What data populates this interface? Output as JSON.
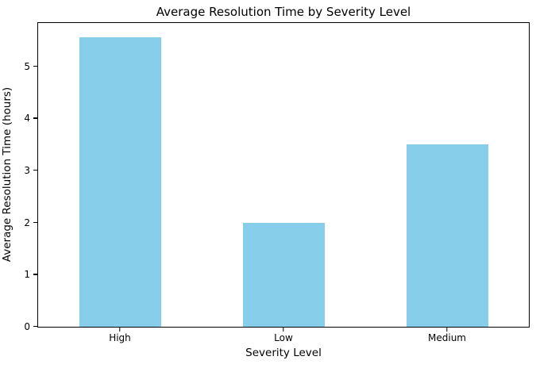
{
  "figure": {
    "background": "#ffffff"
  },
  "chart_data": {
    "type": "bar",
    "title": "Average Resolution Time by Severity Level",
    "xlabel": "Severity Level",
    "ylabel": "Average Resolution Time (hours)",
    "categories": [
      "High",
      "Low",
      "Medium"
    ],
    "values": [
      5.55,
      2.0,
      3.5
    ],
    "yticks": [
      0,
      1,
      2,
      3,
      4,
      5
    ],
    "ylim": [
      0,
      5.83
    ],
    "bar_color": "#87CEEB",
    "bar_width_fraction": 0.5,
    "grid": false,
    "legend": null,
    "spine_color": "#000000",
    "background": "#ffffff"
  }
}
